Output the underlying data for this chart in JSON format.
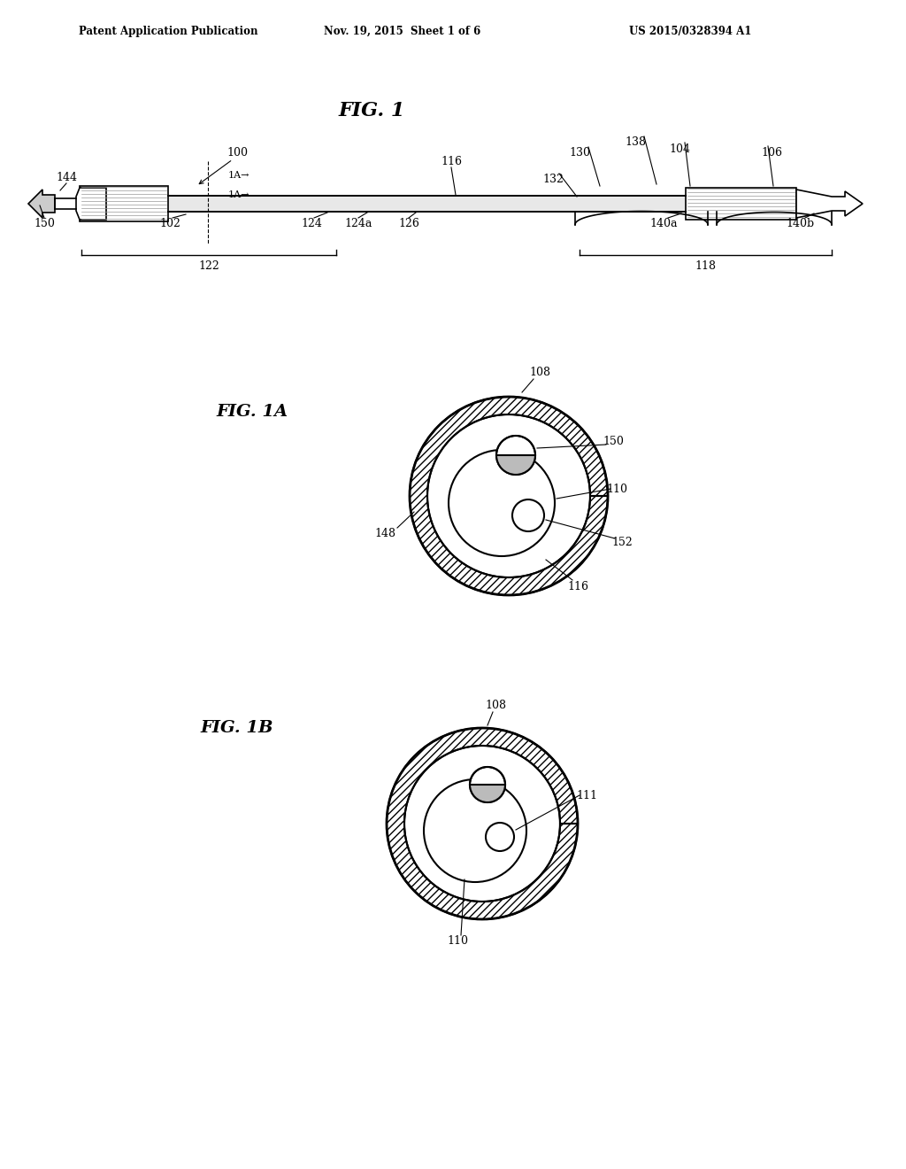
{
  "bg_color": "#ffffff",
  "header_left": "Patent Application Publication",
  "header_mid": "Nov. 19, 2015  Sheet 1 of 6",
  "header_right": "US 2015/0328394 A1",
  "fig1_title": "FIG. 1",
  "fig1a_title": "FIG. 1A",
  "fig1b_title": "FIG. 1B",
  "line_color": "#000000"
}
